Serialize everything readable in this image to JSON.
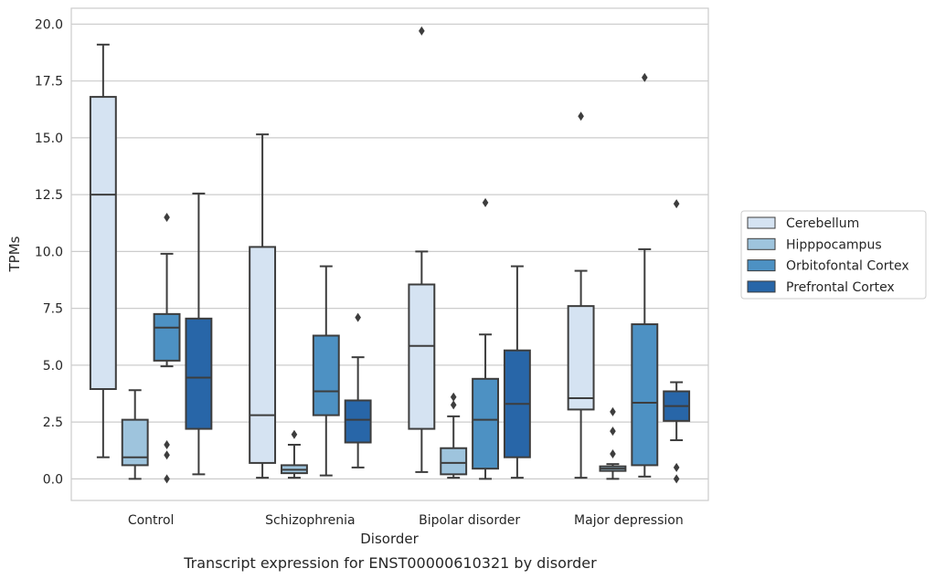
{
  "chart_data": {
    "type": "box",
    "xlabel": "Disorder",
    "ylabel": "TPMs",
    "caption": "Transcript expression for ENST00000610321 by disorder",
    "ylim": [
      -0.95,
      20.7
    ],
    "yticks": [
      0.0,
      2.5,
      5.0,
      7.5,
      10.0,
      12.5,
      15.0,
      17.5,
      20.0
    ],
    "ytick_labels": [
      "0.0",
      "2.5",
      "5.0",
      "7.5",
      "10.0",
      "12.5",
      "15.0",
      "17.5",
      "20.0"
    ],
    "grid": "horizontal",
    "legend_position": "right",
    "categories": [
      "Control",
      "Schizophrenia",
      "Bipolar disorder",
      "Major depression"
    ],
    "series": [
      {
        "name": "Cerebellum",
        "color": "#d5e3f2",
        "boxes": [
          {
            "whisker_low": 0.95,
            "q1": 3.95,
            "median": 12.5,
            "q3": 16.8,
            "whisker_high": 19.1,
            "outliers": []
          },
          {
            "whisker_low": 0.05,
            "q1": 0.7,
            "median": 2.8,
            "q3": 10.2,
            "whisker_high": 15.15,
            "outliers": []
          },
          {
            "whisker_low": 0.3,
            "q1": 2.2,
            "median": 5.85,
            "q3": 8.55,
            "whisker_high": 10.0,
            "outliers": [
              19.7
            ]
          },
          {
            "whisker_low": 0.05,
            "q1": 3.05,
            "median": 3.55,
            "q3": 7.6,
            "whisker_high": 9.15,
            "outliers": [
              15.95
            ]
          }
        ]
      },
      {
        "name": "Hipppocampus",
        "color": "#9ec4dd",
        "boxes": [
          {
            "whisker_low": 0.0,
            "q1": 0.6,
            "median": 0.95,
            "q3": 2.6,
            "whisker_high": 3.9,
            "outliers": []
          },
          {
            "whisker_low": 0.05,
            "q1": 0.25,
            "median": 0.4,
            "q3": 0.6,
            "whisker_high": 1.5,
            "outliers": [
              1.95
            ]
          },
          {
            "whisker_low": 0.05,
            "q1": 0.2,
            "median": 0.7,
            "q3": 1.35,
            "whisker_high": 2.75,
            "outliers": [
              3.25,
              3.6
            ]
          },
          {
            "whisker_low": 0.0,
            "q1": 0.35,
            "median": 0.45,
            "q3": 0.55,
            "whisker_high": 0.65,
            "outliers": [
              1.1,
              2.1,
              2.95
            ]
          }
        ]
      },
      {
        "name": "Orbitofontal Cortex",
        "color": "#4d91c3",
        "boxes": [
          {
            "whisker_low": 4.95,
            "q1": 5.2,
            "median": 6.65,
            "q3": 7.25,
            "whisker_high": 9.9,
            "outliers": [
              11.5,
              1.5,
              1.05,
              0.0
            ]
          },
          {
            "whisker_low": 0.15,
            "q1": 2.8,
            "median": 3.85,
            "q3": 6.3,
            "whisker_high": 9.35,
            "outliers": []
          },
          {
            "whisker_low": 0.0,
            "q1": 0.45,
            "median": 2.6,
            "q3": 4.4,
            "whisker_high": 6.35,
            "outliers": [
              12.15
            ]
          },
          {
            "whisker_low": 0.1,
            "q1": 0.6,
            "median": 3.35,
            "q3": 6.8,
            "whisker_high": 10.1,
            "outliers": [
              17.65
            ]
          }
        ]
      },
      {
        "name": "Prefrontal Cortex",
        "color": "#2866a8",
        "boxes": [
          {
            "whisker_low": 0.2,
            "q1": 2.2,
            "median": 4.45,
            "q3": 7.05,
            "whisker_high": 12.55,
            "outliers": []
          },
          {
            "whisker_low": 0.5,
            "q1": 1.6,
            "median": 2.6,
            "q3": 3.45,
            "whisker_high": 5.35,
            "outliers": [
              7.1
            ]
          },
          {
            "whisker_low": 0.05,
            "q1": 0.95,
            "median": 3.3,
            "q3": 5.65,
            "whisker_high": 9.35,
            "outliers": []
          },
          {
            "whisker_low": 1.7,
            "q1": 2.55,
            "median": 3.2,
            "q3": 3.85,
            "whisker_high": 4.25,
            "outliers": [
              12.1,
              0.5,
              0.0
            ]
          }
        ]
      }
    ]
  }
}
